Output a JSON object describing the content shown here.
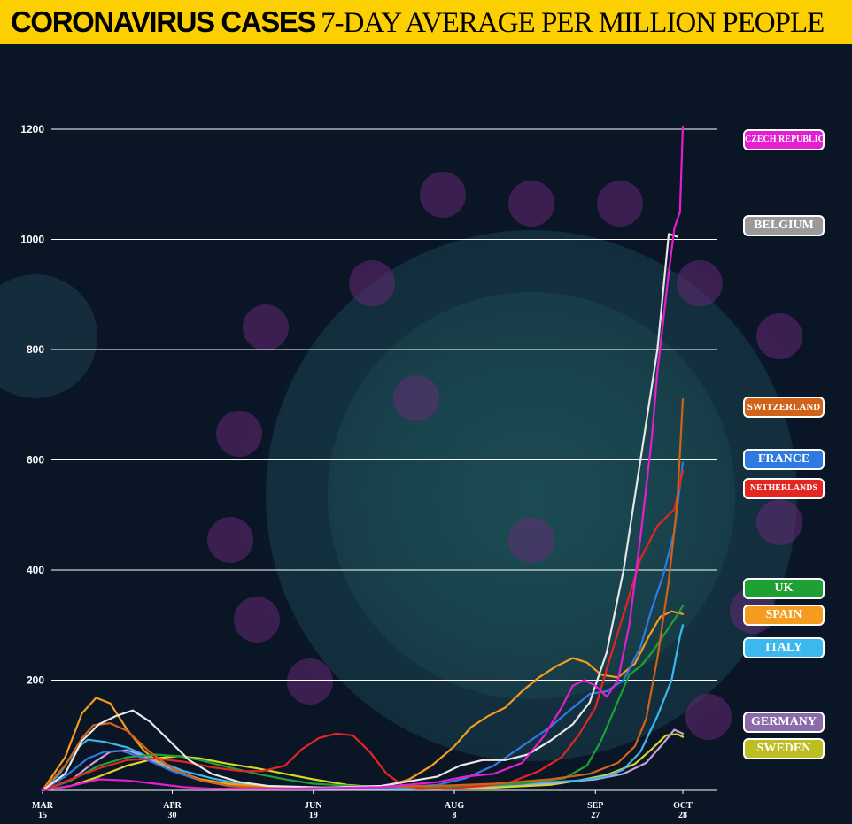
{
  "header": {
    "title_bold": "CORONAVIRUS CASES",
    "title_rest": "7-DAY AVERAGE PER MILLION PEOPLE",
    "background": "#fcd000"
  },
  "chart_data": {
    "type": "line",
    "title": "CORONAVIRUS CASES 7-DAY AVERAGE PER MILLION PEOPLE",
    "xlabel": "",
    "ylabel": "",
    "xlim": [
      0,
      227
    ],
    "ylim": [
      0,
      1200
    ],
    "grid": true,
    "legend_position": "right",
    "y_ticks": [
      200,
      400,
      600,
      800,
      1000,
      1200
    ],
    "x_ticks": [
      {
        "day": 0,
        "month": "MAR",
        "date": "15"
      },
      {
        "day": 46,
        "month": "APR",
        "date": "30"
      },
      {
        "day": 96,
        "month": "JUN",
        "date": "19"
      },
      {
        "day": 146,
        "month": "AUG",
        "date": "8"
      },
      {
        "day": 196,
        "month": "SEP",
        "date": "27"
      },
      {
        "day": 227,
        "month": "OCT",
        "date": "28"
      }
    ],
    "series": [
      {
        "name": "SWEDEN",
        "color": "#d6d62a",
        "points": [
          [
            0,
            0
          ],
          [
            10,
            8
          ],
          [
            20,
            25
          ],
          [
            30,
            45
          ],
          [
            40,
            58
          ],
          [
            48,
            62
          ],
          [
            56,
            58
          ],
          [
            66,
            48
          ],
          [
            76,
            40
          ],
          [
            86,
            30
          ],
          [
            96,
            20
          ],
          [
            108,
            10
          ],
          [
            120,
            5
          ],
          [
            140,
            3
          ],
          [
            160,
            5
          ],
          [
            180,
            10
          ],
          [
            190,
            18
          ],
          [
            200,
            28
          ],
          [
            210,
            48
          ],
          [
            216,
            75
          ],
          [
            221,
            100
          ],
          [
            225,
            102
          ],
          [
            227,
            97
          ]
        ]
      },
      {
        "name": "GERMANY",
        "color": "#c9a0dc",
        "points": [
          [
            0,
            0
          ],
          [
            10,
            18
          ],
          [
            18,
            50
          ],
          [
            24,
            70
          ],
          [
            30,
            73
          ],
          [
            36,
            62
          ],
          [
            46,
            38
          ],
          [
            56,
            20
          ],
          [
            66,
            10
          ],
          [
            80,
            5
          ],
          [
            100,
            3
          ],
          [
            120,
            3
          ],
          [
            140,
            4
          ],
          [
            160,
            8
          ],
          [
            180,
            13
          ],
          [
            196,
            20
          ],
          [
            206,
            30
          ],
          [
            214,
            50
          ],
          [
            220,
            85
          ],
          [
            224,
            110
          ],
          [
            227,
            103
          ]
        ]
      },
      {
        "name": "ITALY",
        "color": "#3bb8ee",
        "points": [
          [
            0,
            0
          ],
          [
            6,
            30
          ],
          [
            12,
            75
          ],
          [
            16,
            92
          ],
          [
            22,
            88
          ],
          [
            30,
            78
          ],
          [
            40,
            55
          ],
          [
            50,
            35
          ],
          [
            60,
            22
          ],
          [
            70,
            12
          ],
          [
            80,
            6
          ],
          [
            100,
            3
          ],
          [
            130,
            3
          ],
          [
            150,
            6
          ],
          [
            170,
            12
          ],
          [
            190,
            18
          ],
          [
            200,
            25
          ],
          [
            206,
            38
          ],
          [
            212,
            70
          ],
          [
            218,
            135
          ],
          [
            223,
            200
          ],
          [
            226,
            280
          ],
          [
            227,
            300
          ]
        ]
      },
      {
        "name": "SPAIN",
        "color": "#f39c1f",
        "points": [
          [
            0,
            0
          ],
          [
            8,
            60
          ],
          [
            14,
            140
          ],
          [
            19,
            168
          ],
          [
            24,
            158
          ],
          [
            30,
            110
          ],
          [
            36,
            72
          ],
          [
            44,
            40
          ],
          [
            54,
            22
          ],
          [
            66,
            12
          ],
          [
            80,
            6
          ],
          [
            96,
            4
          ],
          [
            110,
            4
          ],
          [
            122,
            8
          ],
          [
            130,
            20
          ],
          [
            138,
            45
          ],
          [
            146,
            80
          ],
          [
            152,
            115
          ],
          [
            158,
            135
          ],
          [
            164,
            150
          ],
          [
            170,
            180
          ],
          [
            176,
            205
          ],
          [
            182,
            225
          ],
          [
            188,
            240
          ],
          [
            193,
            232
          ],
          [
            198,
            210
          ],
          [
            204,
            205
          ],
          [
            210,
            230
          ],
          [
            215,
            280
          ],
          [
            219,
            315
          ],
          [
            223,
            325
          ],
          [
            227,
            320
          ]
        ]
      },
      {
        "name": "UK",
        "color": "#1fa034",
        "points": [
          [
            0,
            0
          ],
          [
            10,
            18
          ],
          [
            20,
            45
          ],
          [
            30,
            60
          ],
          [
            40,
            65
          ],
          [
            48,
            62
          ],
          [
            56,
            55
          ],
          [
            66,
            42
          ],
          [
            76,
            30
          ],
          [
            86,
            20
          ],
          [
            96,
            12
          ],
          [
            110,
            8
          ],
          [
            130,
            6
          ],
          [
            150,
            7
          ],
          [
            170,
            12
          ],
          [
            185,
            22
          ],
          [
            193,
            45
          ],
          [
            198,
            90
          ],
          [
            203,
            150
          ],
          [
            208,
            210
          ],
          [
            212,
            225
          ],
          [
            216,
            250
          ],
          [
            220,
            280
          ],
          [
            224,
            310
          ],
          [
            227,
            335
          ]
        ]
      },
      {
        "name": "FRANCE",
        "color": "#2f7ae0",
        "points": [
          [
            0,
            0
          ],
          [
            8,
            25
          ],
          [
            16,
            58
          ],
          [
            22,
            70
          ],
          [
            28,
            72
          ],
          [
            36,
            58
          ],
          [
            46,
            35
          ],
          [
            56,
            18
          ],
          [
            66,
            8
          ],
          [
            80,
            4
          ],
          [
            100,
            3
          ],
          [
            120,
            4
          ],
          [
            140,
            10
          ],
          [
            150,
            22
          ],
          [
            160,
            45
          ],
          [
            170,
            80
          ],
          [
            180,
            115
          ],
          [
            188,
            150
          ],
          [
            194,
            175
          ],
          [
            200,
            180
          ],
          [
            206,
            200
          ],
          [
            212,
            260
          ],
          [
            216,
            330
          ],
          [
            220,
            390
          ],
          [
            224,
            470
          ],
          [
            227,
            595
          ]
        ]
      },
      {
        "name": "NETHERLANDS",
        "color": "#e52521",
        "points": [
          [
            0,
            0
          ],
          [
            10,
            20
          ],
          [
            20,
            40
          ],
          [
            30,
            55
          ],
          [
            40,
            58
          ],
          [
            50,
            52
          ],
          [
            60,
            42
          ],
          [
            70,
            35
          ],
          [
            78,
            35
          ],
          [
            86,
            45
          ],
          [
            92,
            75
          ],
          [
            98,
            95
          ],
          [
            104,
            103
          ],
          [
            110,
            100
          ],
          [
            116,
            70
          ],
          [
            122,
            30
          ],
          [
            128,
            8
          ],
          [
            136,
            3
          ],
          [
            146,
            4
          ],
          [
            156,
            8
          ],
          [
            166,
            15
          ],
          [
            176,
            35
          ],
          [
            184,
            60
          ],
          [
            190,
            100
          ],
          [
            196,
            150
          ],
          [
            200,
            220
          ],
          [
            206,
            320
          ],
          [
            212,
            420
          ],
          [
            218,
            480
          ],
          [
            224,
            510
          ],
          [
            227,
            580
          ]
        ]
      },
      {
        "name": "SWITZERLAND",
        "color": "#d06219",
        "points": [
          [
            0,
            0
          ],
          [
            8,
            45
          ],
          [
            14,
            95
          ],
          [
            18,
            118
          ],
          [
            24,
            122
          ],
          [
            30,
            108
          ],
          [
            38,
            70
          ],
          [
            46,
            40
          ],
          [
            56,
            18
          ],
          [
            66,
            8
          ],
          [
            80,
            4
          ],
          [
            100,
            5
          ],
          [
            120,
            7
          ],
          [
            140,
            8
          ],
          [
            160,
            12
          ],
          [
            180,
            20
          ],
          [
            194,
            30
          ],
          [
            204,
            50
          ],
          [
            210,
            80
          ],
          [
            214,
            130
          ],
          [
            218,
            240
          ],
          [
            222,
            380
          ],
          [
            225,
            520
          ],
          [
            227,
            710
          ]
        ]
      },
      {
        "name": "BELGIUM",
        "color": "#e6e6e6",
        "points": [
          [
            0,
            0
          ],
          [
            8,
            30
          ],
          [
            14,
            90
          ],
          [
            20,
            120
          ],
          [
            26,
            135
          ],
          [
            32,
            145
          ],
          [
            38,
            125
          ],
          [
            44,
            95
          ],
          [
            52,
            55
          ],
          [
            60,
            30
          ],
          [
            70,
            15
          ],
          [
            80,
            8
          ],
          [
            100,
            5
          ],
          [
            120,
            8
          ],
          [
            140,
            25
          ],
          [
            148,
            45
          ],
          [
            156,
            55
          ],
          [
            164,
            55
          ],
          [
            172,
            65
          ],
          [
            180,
            90
          ],
          [
            188,
            120
          ],
          [
            194,
            160
          ],
          [
            200,
            250
          ],
          [
            206,
            400
          ],
          [
            212,
            600
          ],
          [
            218,
            800
          ],
          [
            222,
            1010
          ],
          [
            225,
            1005
          ]
        ]
      },
      {
        "name": "CZECH REPUBLIC",
        "color": "#e61ed0",
        "points": [
          [
            0,
            0
          ],
          [
            10,
            8
          ],
          [
            20,
            20
          ],
          [
            30,
            18
          ],
          [
            40,
            12
          ],
          [
            50,
            6
          ],
          [
            60,
            3
          ],
          [
            80,
            3
          ],
          [
            100,
            4
          ],
          [
            120,
            6
          ],
          [
            140,
            15
          ],
          [
            150,
            25
          ],
          [
            160,
            30
          ],
          [
            170,
            50
          ],
          [
            178,
            100
          ],
          [
            184,
            150
          ],
          [
            188,
            190
          ],
          [
            192,
            200
          ],
          [
            196,
            190
          ],
          [
            200,
            170
          ],
          [
            204,
            200
          ],
          [
            208,
            300
          ],
          [
            212,
            460
          ],
          [
            216,
            640
          ],
          [
            218,
            760
          ],
          [
            220,
            850
          ],
          [
            222,
            940
          ],
          [
            224,
            1020
          ],
          [
            226,
            1050
          ],
          [
            227,
            1205
          ]
        ]
      }
    ]
  },
  "legend": [
    {
      "name": "CZECH REPUBLIC",
      "color": "#e61ed0",
      "top": 146,
      "size": 10
    },
    {
      "name": "BELGIUM",
      "color": "#9a9a9a",
      "top": 243,
      "size": 14
    },
    {
      "name": "SWITZERLAND",
      "color": "#d06219",
      "top": 448,
      "size": 11
    },
    {
      "name": "FRANCE",
      "color": "#2f7ae0",
      "top": 507,
      "size": 14
    },
    {
      "name": "NETHERLANDS",
      "color": "#e52521",
      "top": 540,
      "size": 10
    },
    {
      "name": "UK",
      "color": "#1fa034",
      "top": 653,
      "size": 14
    },
    {
      "name": "SPAIN",
      "color": "#f39c1f",
      "top": 683,
      "size": 14
    },
    {
      "name": "ITALY",
      "color": "#3bb8ee",
      "top": 720,
      "size": 14
    },
    {
      "name": "GERMANY",
      "color": "#8a6aaa",
      "top": 804,
      "size": 14
    },
    {
      "name": "SWEDEN",
      "color": "#bdbd24",
      "top": 834,
      "size": 14
    }
  ]
}
